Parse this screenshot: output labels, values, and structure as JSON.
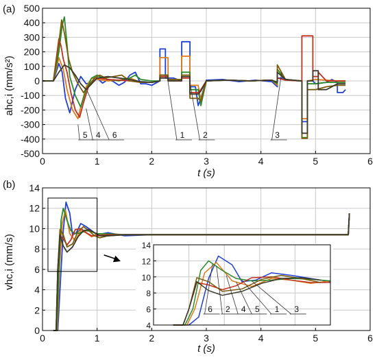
{
  "chart_data": [
    {
      "id": "a",
      "type": "line",
      "panel_label": "(a)",
      "xlabel": "t (s)",
      "ylabel": "ahc,i (mm/s²)",
      "xlim": [
        0,
        6
      ],
      "ylim": [
        -500,
        500
      ],
      "xticks": [
        0,
        1,
        2,
        3,
        4,
        5,
        6
      ],
      "yticks": [
        -500,
        -400,
        -300,
        -200,
        -100,
        0,
        100,
        200,
        300,
        400,
        500
      ],
      "grid": true,
      "annotations": [
        {
          "text": "5",
          "x": 0.65,
          "y": -300,
          "tx": 0.68,
          "ty": -415
        },
        {
          "text": "4",
          "x": 0.8,
          "y": -190,
          "tx": 0.92,
          "ty": -415
        },
        {
          "text": "6",
          "x": 0.82,
          "y": -70,
          "tx": 1.22,
          "ty": -415
        },
        {
          "text": "1",
          "x": 2.28,
          "y": 40,
          "tx": 2.46,
          "ty": -415
        },
        {
          "text": "2",
          "x": 2.7,
          "y": -10,
          "tx": 2.88,
          "ty": -415
        },
        {
          "text": "3",
          "x": 4.38,
          "y": 60,
          "tx": 4.2,
          "ty": -415
        }
      ],
      "series": [
        {
          "color": "#1f3fd6",
          "x": [
            0,
            0.2,
            0.3,
            0.36,
            0.42,
            0.5,
            0.6,
            0.7,
            0.8,
            0.9,
            1.0,
            1.1,
            1.2,
            1.3,
            1.4,
            1.5,
            1.6,
            1.7,
            1.8,
            1.9,
            2.0,
            2.1,
            2.15,
            2.15,
            2.25,
            2.25,
            2.4,
            2.5,
            2.55,
            2.55,
            2.7,
            2.7,
            2.8,
            2.85,
            2.9,
            3.0,
            3.3,
            3.6,
            3.9,
            4.2,
            4.3,
            4.3,
            4.4,
            4.5,
            4.7,
            4.75,
            4.75,
            4.85,
            4.85,
            4.95,
            5.0,
            5.2,
            5.3,
            5.4,
            5.4,
            5.5,
            5.55
          ],
          "y": [
            0,
            0,
            120,
            60,
            -120,
            -220,
            -60,
            30,
            -20,
            -10,
            20,
            -15,
            10,
            -5,
            -30,
            -10,
            40,
            60,
            -20,
            -20,
            -30,
            -10,
            0,
            220,
            220,
            20,
            20,
            5,
            10,
            270,
            270,
            -40,
            -40,
            -170,
            -120,
            5,
            10,
            -5,
            5,
            -5,
            -40,
            20,
            20,
            5,
            0,
            0,
            -280,
            -280,
            0,
            0,
            -20,
            -10,
            10,
            -10,
            -80,
            -80,
            -60
          ]
        },
        {
          "color": "#e07a18",
          "x": [
            0,
            0.2,
            0.3,
            0.38,
            0.45,
            0.55,
            0.65,
            0.7,
            0.8,
            0.9,
            1.0,
            1.2,
            1.4,
            1.6,
            1.8,
            2.0,
            2.15,
            2.15,
            2.3,
            2.3,
            2.5,
            2.55,
            2.55,
            2.7,
            2.7,
            2.85,
            2.9,
            3.0,
            3.4,
            3.8,
            4.2,
            4.3,
            4.3,
            4.45,
            4.75,
            4.75,
            4.85,
            4.85,
            5.0,
            5.2,
            5.4,
            5.55
          ],
          "y": [
            0,
            0,
            160,
            80,
            -60,
            -200,
            -260,
            -180,
            -40,
            20,
            10,
            0,
            5,
            20,
            -10,
            -10,
            0,
            160,
            160,
            10,
            10,
            5,
            170,
            170,
            -30,
            -30,
            -130,
            0,
            5,
            0,
            5,
            -30,
            80,
            5,
            0,
            -260,
            -260,
            0,
            10,
            5,
            0,
            0
          ]
        },
        {
          "color": "#2a8a2a",
          "x": [
            0,
            0.2,
            0.3,
            0.36,
            0.4,
            0.45,
            0.5,
            0.6,
            0.7,
            0.8,
            0.9,
            1.0,
            1.1,
            1.2,
            1.3,
            1.4,
            1.6,
            1.7,
            1.8,
            2.0,
            2.15,
            2.15,
            2.3,
            2.3,
            2.5,
            2.55,
            2.55,
            2.7,
            2.7,
            2.85,
            2.9,
            3.0,
            3.4,
            3.8,
            4.2,
            4.3,
            4.3,
            4.45,
            4.75,
            4.75,
            4.85,
            4.85,
            5.0,
            5.2,
            5.4,
            5.55
          ],
          "y": [
            0,
            0,
            200,
            380,
            440,
            250,
            30,
            -100,
            -180,
            -60,
            20,
            40,
            20,
            10,
            5,
            0,
            20,
            40,
            10,
            0,
            0,
            40,
            40,
            10,
            10,
            5,
            60,
            60,
            -60,
            -60,
            -170,
            0,
            5,
            0,
            5,
            -20,
            80,
            10,
            0,
            -390,
            -390,
            -20,
            -20,
            -10,
            -10,
            -10
          ]
        },
        {
          "color": "#c0301f",
          "x": [
            0,
            0.2,
            0.3,
            0.34,
            0.38,
            0.45,
            0.52,
            0.6,
            0.68,
            0.75,
            0.85,
            1.0,
            1.2,
            1.4,
            1.6,
            1.8,
            2.0,
            2.15,
            2.15,
            2.3,
            2.3,
            2.55,
            2.55,
            2.7,
            2.7,
            2.85,
            2.9,
            3.0,
            3.4,
            3.8,
            4.2,
            4.3,
            4.3,
            4.45,
            4.7,
            4.75,
            4.75,
            4.95,
            4.95,
            5.05,
            5.05,
            5.2,
            5.4,
            5.55
          ],
          "y": [
            0,
            0,
            290,
            240,
            150,
            60,
            -80,
            -200,
            -250,
            -150,
            -30,
            20,
            10,
            5,
            0,
            -10,
            -10,
            0,
            30,
            30,
            0,
            0,
            20,
            20,
            -80,
            -80,
            -60,
            0,
            5,
            0,
            5,
            -10,
            20,
            5,
            0,
            0,
            310,
            310,
            30,
            30,
            60,
            0,
            0,
            0
          ]
        },
        {
          "color": "#7a5a0a",
          "x": [
            0,
            0.2,
            0.3,
            0.35,
            0.4,
            0.48,
            0.55,
            0.65,
            0.75,
            0.85,
            0.95,
            1.05,
            1.15,
            1.3,
            1.45,
            1.6,
            1.8,
            2.0,
            2.15,
            2.15,
            2.3,
            2.3,
            2.55,
            2.55,
            2.7,
            2.7,
            2.85,
            2.9,
            3.0,
            3.4,
            3.8,
            4.2,
            4.3,
            4.3,
            4.45,
            4.75,
            4.75,
            4.85,
            4.85,
            5.0,
            5.2,
            5.4,
            5.55
          ],
          "y": [
            0,
            0,
            260,
            420,
            330,
            150,
            60,
            -20,
            -80,
            -30,
            20,
            40,
            20,
            30,
            40,
            0,
            -10,
            -10,
            0,
            40,
            40,
            10,
            10,
            40,
            40,
            -120,
            -120,
            -140,
            0,
            5,
            0,
            5,
            -10,
            110,
            10,
            0,
            -395,
            -395,
            -60,
            -60,
            -40,
            -30,
            -30
          ]
        },
        {
          "color": "#3a3a2a",
          "x": [
            0,
            0.2,
            0.3,
            0.4,
            0.5,
            0.6,
            0.7,
            0.8,
            0.9,
            1.0,
            1.2,
            1.4,
            1.6,
            1.8,
            2.0,
            2.15,
            2.15,
            2.3,
            2.3,
            2.55,
            2.55,
            2.7,
            2.7,
            2.85,
            2.9,
            3.0,
            3.4,
            3.8,
            4.2,
            4.3,
            4.3,
            4.45,
            4.75,
            4.75,
            4.85,
            4.85,
            4.95,
            4.95,
            5.05,
            5.05,
            5.2,
            5.4,
            5.55
          ],
          "y": [
            0,
            0,
            60,
            110,
            90,
            40,
            -20,
            -60,
            -20,
            20,
            30,
            20,
            10,
            -5,
            -10,
            0,
            20,
            20,
            0,
            0,
            30,
            30,
            -90,
            -90,
            -70,
            0,
            5,
            0,
            5,
            -10,
            60,
            10,
            0,
            -360,
            -360,
            0,
            0,
            70,
            70,
            -60,
            -60,
            -20,
            -20
          ]
        }
      ]
    },
    {
      "id": "b",
      "type": "line",
      "panel_label": "(b)",
      "xlabel": "t (s)",
      "ylabel": "vhc,i (mm/s)",
      "xlim": [
        0,
        6
      ],
      "ylim": [
        0,
        14
      ],
      "xticks": [
        0,
        1,
        2,
        3,
        4,
        5,
        6
      ],
      "yticks": [
        0,
        2,
        4,
        6,
        8,
        10,
        12,
        14
      ],
      "grid": true,
      "zoom_box": {
        "x": [
          0.1,
          1.0
        ],
        "y": [
          5.8,
          13
        ]
      },
      "series": [
        {
          "color": "#1f3fd6",
          "x": [
            0.2,
            0.28,
            0.33,
            0.38,
            0.43,
            0.5,
            0.55,
            0.62,
            0.7,
            0.8,
            0.9,
            1.0,
            1.2,
            1.5,
            2.0,
            3.0,
            4.0,
            5.0,
            5.6,
            5.62
          ],
          "y": [
            0,
            0,
            5,
            9.8,
            12.6,
            11.5,
            9.4,
            9.6,
            10.5,
            10.2,
            9.8,
            9.4,
            9.6,
            9.3,
            9.4,
            9.4,
            9.4,
            9.4,
            9.4,
            11.5
          ]
        },
        {
          "color": "#e07a18",
          "x": [
            0.2,
            0.27,
            0.31,
            0.36,
            0.42,
            0.5,
            0.6,
            0.7,
            0.8,
            0.9,
            1.0,
            1.2,
            1.5,
            2.0,
            3.0,
            4.0,
            5.0,
            5.6,
            5.62
          ],
          "y": [
            0,
            0,
            6,
            10.5,
            11.8,
            9.5,
            8.8,
            9.8,
            9.6,
            9.2,
            9.5,
            9.3,
            9.4,
            9.4,
            9.4,
            9.4,
            9.4,
            9.4,
            11.5
          ]
        },
        {
          "color": "#2a8a2a",
          "x": [
            0.2,
            0.26,
            0.3,
            0.34,
            0.38,
            0.45,
            0.52,
            0.6,
            0.7,
            0.8,
            0.9,
            1.0,
            1.2,
            1.5,
            2.0,
            3.0,
            4.0,
            5.0,
            5.6,
            5.62
          ],
          "y": [
            0,
            0,
            6,
            10.8,
            12.0,
            10.8,
            9.8,
            9.5,
            9.6,
            9.8,
            9.7,
            9.5,
            9.5,
            9.4,
            9.4,
            9.4,
            9.4,
            9.4,
            9.4,
            11.5
          ]
        },
        {
          "color": "#c0301f",
          "x": [
            0.2,
            0.25,
            0.28,
            0.32,
            0.38,
            0.45,
            0.52,
            0.6,
            0.7,
            0.8,
            0.9,
            1.0,
            1.2,
            1.5,
            2.0,
            3.0,
            4.0,
            5.0,
            5.6,
            5.62
          ],
          "y": [
            0,
            0,
            6,
            9.3,
            9.0,
            8.4,
            8.9,
            9.9,
            10.0,
            9.6,
            9.3,
            9.3,
            9.4,
            9.4,
            9.4,
            9.4,
            9.4,
            9.4,
            9.4,
            11.5
          ]
        },
        {
          "color": "#7a5a0a",
          "x": [
            0.2,
            0.25,
            0.28,
            0.32,
            0.38,
            0.45,
            0.55,
            0.65,
            0.75,
            0.85,
            0.95,
            1.05,
            1.2,
            1.5,
            2.0,
            3.0,
            4.0,
            5.0,
            5.6,
            5.62
          ],
          "y": [
            0,
            0,
            6,
            9.9,
            9.4,
            8.2,
            8.5,
            9.7,
            10.2,
            9.8,
            9.3,
            9.1,
            9.3,
            9.4,
            9.4,
            9.4,
            9.4,
            9.4,
            9.4,
            11.5
          ]
        },
        {
          "color": "#3a3a2a",
          "x": [
            0.2,
            0.25,
            0.28,
            0.32,
            0.38,
            0.45,
            0.55,
            0.65,
            0.75,
            0.85,
            0.95,
            1.05,
            1.2,
            1.5,
            2.0,
            3.0,
            4.0,
            5.0,
            5.6,
            5.62
          ],
          "y": [
            0,
            0,
            6,
            9.4,
            8.3,
            7.7,
            8.2,
            9.2,
            9.8,
            9.9,
            9.6,
            9.3,
            9.3,
            9.4,
            9.4,
            9.4,
            9.4,
            9.4,
            9.4,
            11.5
          ]
        }
      ]
    },
    {
      "id": "inset",
      "type": "line",
      "xlim": [
        0.1,
        1.0
      ],
      "ylim": [
        4,
        14
      ],
      "yticks": [
        4,
        6,
        8,
        10,
        12,
        14
      ],
      "grid": true,
      "annotations": [
        {
          "text": "6",
          "x": 0.4,
          "y": 11.6,
          "tx": 0.36,
          "ty": 5.2
        },
        {
          "text": "2",
          "x": 0.42,
          "y": 11.4,
          "tx": 0.45,
          "ty": 5.2
        },
        {
          "text": "4",
          "x": 0.47,
          "y": 10.2,
          "tx": 0.53,
          "ty": 5.2
        },
        {
          "text": "5",
          "x": 0.52,
          "y": 9.4,
          "tx": 0.6,
          "ty": 5.2
        },
        {
          "text": "1",
          "x": 0.55,
          "y": 9.6,
          "tx": 0.7,
          "ty": 5.2
        },
        {
          "text": "3",
          "x": 0.6,
          "y": 9.5,
          "tx": 0.8,
          "ty": 5.2
        }
      ]
    }
  ]
}
